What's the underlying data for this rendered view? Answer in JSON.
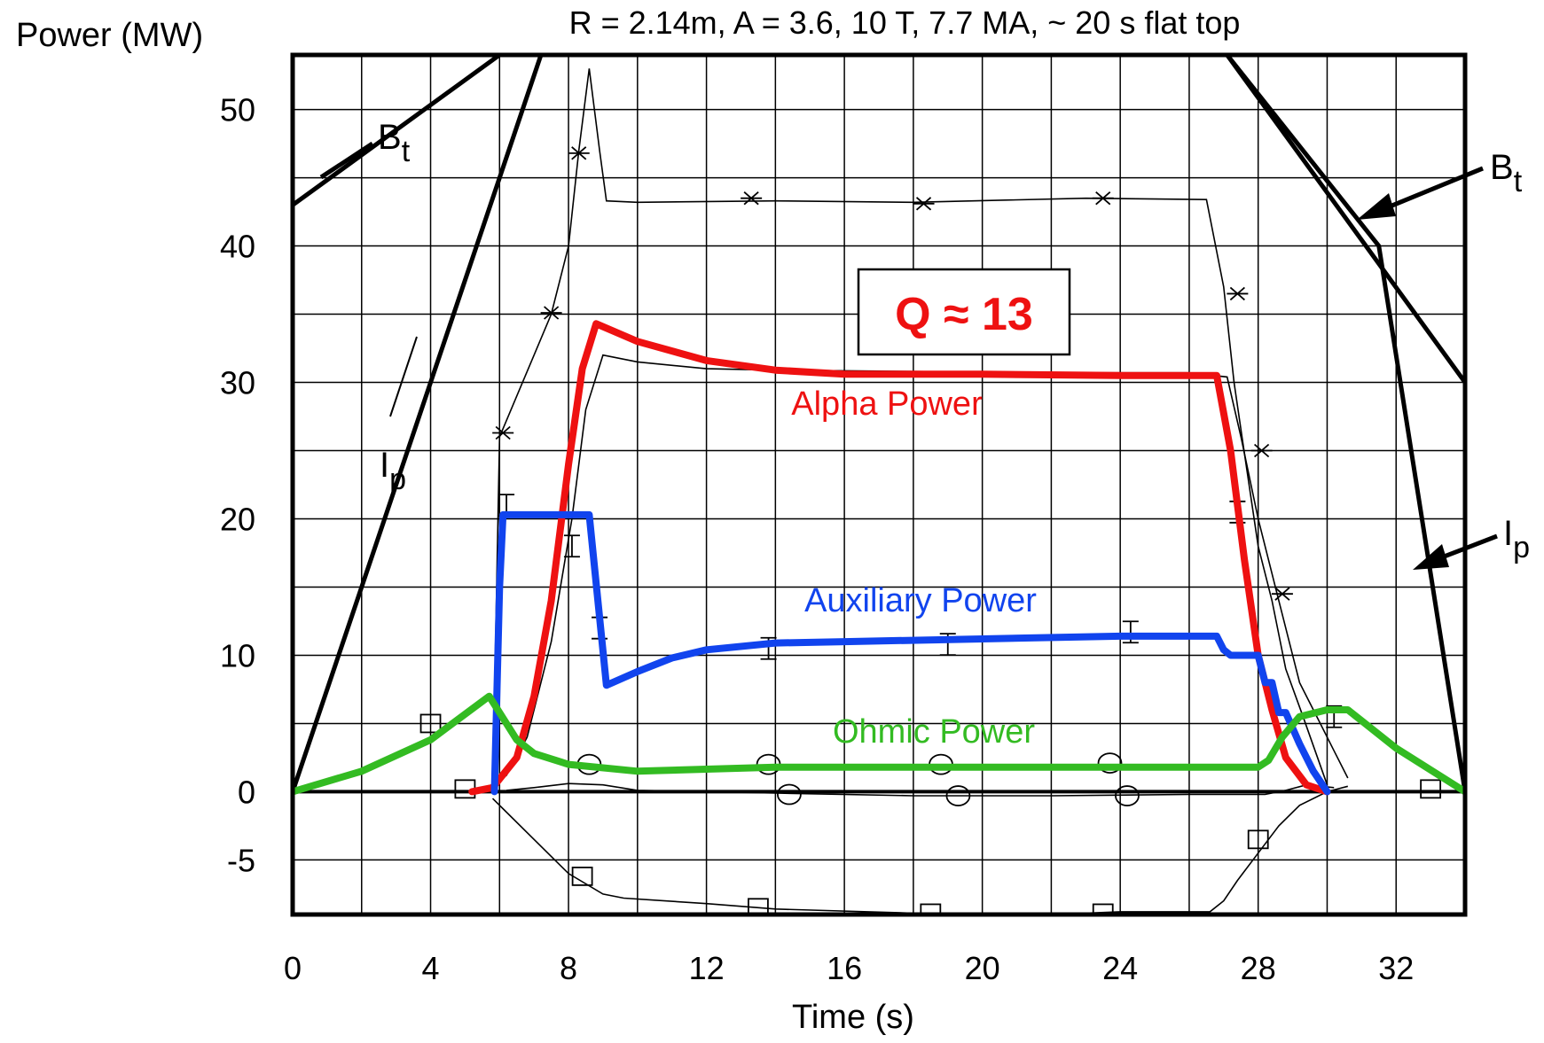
{
  "chart_data": {
    "type": "line",
    "title": "R = 2.14m, A = 3.6, 10 T, 7.7 MA, ~ 20 s flat top",
    "xlabel": "Time (s)",
    "ylabel": "Power (MW)",
    "xlim": [
      0,
      34
    ],
    "ylim": [
      -9,
      54
    ],
    "x_ticks": [
      0,
      4,
      8,
      12,
      16,
      20,
      24,
      28,
      32
    ],
    "y_ticks": [
      -5,
      0,
      10,
      20,
      30,
      40,
      50
    ],
    "x_tick_labels": [
      "0",
      "4",
      "8",
      "12",
      "16",
      "20",
      "24",
      "28",
      "32"
    ],
    "y_tick_labels": [
      "-5",
      "0",
      "10",
      "20",
      "30",
      "40",
      "50"
    ],
    "grid": true,
    "grid_x": [
      0,
      2,
      4,
      6,
      8,
      10,
      12,
      14,
      16,
      18,
      20,
      22,
      24,
      26,
      28,
      30,
      32,
      34
    ],
    "grid_y": [
      -5,
      0,
      5,
      10,
      15,
      20,
      25,
      30,
      35,
      40,
      45,
      50
    ],
    "series": [
      {
        "name": "Alpha Power",
        "color": "#ee1111",
        "x": [
          5.2,
          5.8,
          6.5,
          7.0,
          7.5,
          8.0,
          8.4,
          8.8,
          10,
          12,
          14,
          16,
          20,
          24,
          26.8,
          27.2,
          27.6,
          28.0,
          28.4,
          28.8,
          29.4,
          30.0
        ],
        "y": [
          0,
          0.3,
          2.5,
          7,
          14,
          24,
          31,
          34.3,
          33,
          31.6,
          30.9,
          30.6,
          30.6,
          30.5,
          30.5,
          25,
          17,
          10,
          6,
          2.5,
          0.5,
          0
        ]
      },
      {
        "name": "Auxiliary Power",
        "color": "#1144ee",
        "x": [
          5.85,
          6.0,
          6.1,
          6.2,
          8.6,
          9.1,
          10,
          11,
          12,
          14,
          16,
          20,
          24,
          26.8,
          27.0,
          27.2,
          28.0,
          28.2,
          28.4,
          28.6,
          28.8,
          29.2,
          29.6,
          30.0
        ],
        "y": [
          0,
          15,
          20.3,
          20.3,
          20.3,
          7.8,
          8.8,
          9.8,
          10.4,
          10.9,
          11.0,
          11.2,
          11.4,
          11.4,
          10.4,
          10.0,
          10.0,
          8.0,
          8.0,
          5.8,
          5.8,
          3.5,
          1.5,
          0
        ]
      },
      {
        "name": "Ohmic Power",
        "color": "#33bb22",
        "x": [
          0,
          2,
          4,
          5.7,
          6.0,
          6.5,
          7.0,
          8.0,
          10,
          14,
          20,
          26,
          28.0,
          28.3,
          28.7,
          29.2,
          30.0,
          30.6,
          31.0,
          32.0,
          34.0
        ],
        "y": [
          0,
          1.5,
          3.8,
          7,
          5.8,
          3.8,
          2.8,
          2.0,
          1.5,
          1.8,
          1.8,
          1.8,
          1.8,
          2.3,
          4.0,
          5.5,
          6.0,
          6.0,
          5.2,
          3.2,
          0
        ]
      }
    ],
    "annotation": "Q ≈ 13",
    "other_labels": [
      {
        "main": "B",
        "sub": "t"
      },
      {
        "main": "I",
        "sub": "p"
      },
      {
        "main": "B",
        "sub": "t"
      },
      {
        "main": "I",
        "sub": "p"
      }
    ],
    "accent_colors": {
      "alpha": "#ee1111",
      "auxiliary": "#1144ee",
      "ohmic": "#33bb22",
      "annotation": "#ee1111"
    }
  }
}
